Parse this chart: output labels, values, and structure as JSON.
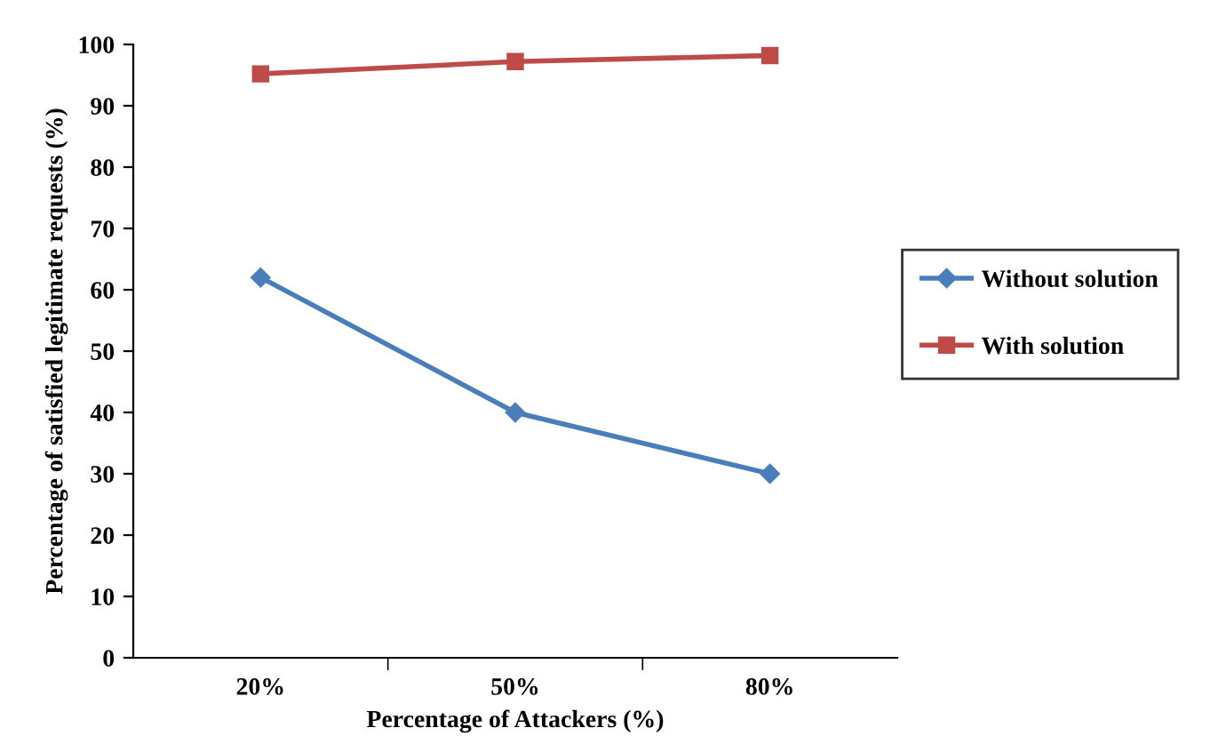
{
  "chart_data": {
    "type": "line",
    "xlabel": "Percentage of Attackers (%)",
    "ylabel": "Percentage of satisfied legitimate requests (%)",
    "categories": [
      "20%",
      "50%",
      "80%"
    ],
    "series": [
      {
        "name": "Without solution",
        "color": "#4a7ebb",
        "marker": "diamond",
        "values": [
          62,
          40,
          30
        ]
      },
      {
        "name": "With solution",
        "color": "#be4b48",
        "marker": "square",
        "values": [
          95.2,
          97.2,
          98.2
        ]
      }
    ],
    "ylim": [
      0,
      100
    ],
    "yticks": [
      0,
      10,
      20,
      30,
      40,
      50,
      60,
      70,
      80,
      90,
      100
    ],
    "grid": false,
    "legend": "right",
    "line_style": "solid"
  }
}
